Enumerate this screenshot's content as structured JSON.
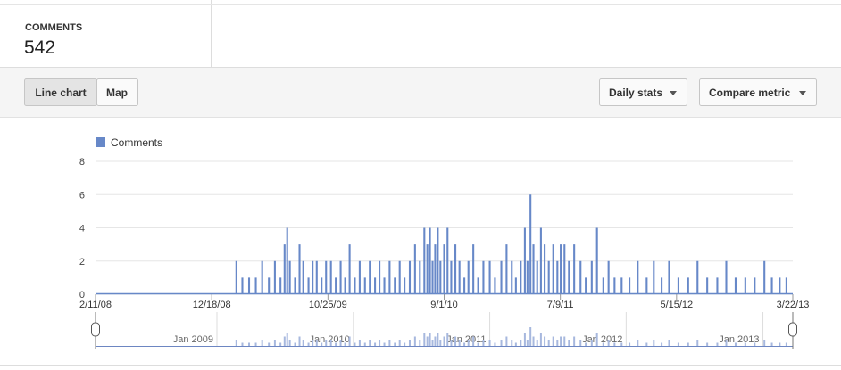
{
  "header": {
    "metric_label": "COMMENTS",
    "metric_value": "542"
  },
  "toolbar": {
    "tabs": [
      "Line chart",
      "Map"
    ],
    "menus": [
      "Daily stats",
      "Compare metric"
    ]
  },
  "chart_data": {
    "type": "bar",
    "series": [
      {
        "name": "Comments",
        "color": "#6788c8",
        "x": [
          "2/22/09",
          "3/10/09",
          "3/28/09",
          "4/15/09",
          "5/2/09",
          "5/20/09",
          "6/5/09",
          "6/20/09",
          "7/1/09",
          "7/8/09",
          "7/15/09",
          "7/29/09",
          "8/10/09",
          "8/20/09",
          "9/3/09",
          "9/14/09",
          "9/25/09",
          "10/8/09",
          "10/20/09",
          "11/2/09",
          "11/15/09",
          "11/28/09",
          "12/10/09",
          "12/22/09",
          "1/5/10",
          "1/18/10",
          "2/1/10",
          "2/14/10",
          "2/28/10",
          "3/12/10",
          "3/25/10",
          "4/8/10",
          "4/22/10",
          "5/5/10",
          "5/18/10",
          "6/1/10",
          "6/15/10",
          "6/28/10",
          "7/10/10",
          "7/18/10",
          "7/25/10",
          "8/1/10",
          "8/8/10",
          "8/15/10",
          "8/22/10",
          "9/1/10",
          "9/10/10",
          "9/20/10",
          "10/1/10",
          "10/12/10",
          "10/25/10",
          "11/5/10",
          "11/18/10",
          "12/1/10",
          "12/15/10",
          "1/1/11",
          "1/15/11",
          "2/1/11",
          "2/15/11",
          "3/1/11",
          "3/12/11",
          "3/25/11",
          "4/5/11",
          "4/12/11",
          "4/20/11",
          "4/28/11",
          "5/8/11",
          "5/18/11",
          "5/28/11",
          "6/8/11",
          "6/20/11",
          "7/1/11",
          "7/10/11",
          "7/20/11",
          "8/1/11",
          "8/15/11",
          "9/1/11",
          "9/15/11",
          "10/1/11",
          "10/15/11",
          "11/1/11",
          "11/15/11",
          "12/1/11",
          "12/20/11",
          "1/10/12",
          "2/1/12",
          "2/25/12",
          "3/15/12",
          "4/5/12",
          "4/25/12",
          "5/20/12",
          "6/15/12",
          "7/10/12",
          "8/5/12",
          "9/1/12",
          "9/25/12",
          "10/20/12",
          "11/15/12",
          "12/10/12",
          "1/5/13",
          "1/25/13",
          "2/15/13",
          "3/5/13"
        ],
        "values": [
          2,
          1,
          1,
          1,
          2,
          1,
          2,
          1,
          3,
          4,
          2,
          1,
          3,
          2,
          1,
          2,
          2,
          1,
          2,
          2,
          1,
          2,
          1,
          3,
          1,
          2,
          1,
          2,
          1,
          2,
          1,
          2,
          1,
          2,
          1,
          2,
          3,
          2,
          4,
          3,
          4,
          2,
          3,
          4,
          2,
          3,
          4,
          2,
          3,
          2,
          1,
          2,
          3,
          1,
          2,
          2,
          1,
          2,
          3,
          2,
          1,
          2,
          4,
          2,
          6,
          3,
          2,
          4,
          3,
          2,
          3,
          2,
          3,
          3,
          2,
          3,
          2,
          1,
          2,
          4,
          1,
          2,
          1,
          1,
          1,
          2,
          1,
          2,
          1,
          2,
          1,
          1,
          2,
          1,
          1,
          2,
          1,
          1,
          1,
          2,
          1,
          1,
          1
        ]
      }
    ],
    "xlim": [
      "2/11/08",
      "3/22/13"
    ],
    "xticks": [
      "2/11/08",
      "12/18/08",
      "10/25/09",
      "9/1/10",
      "7/9/11",
      "5/15/12",
      "3/22/13"
    ],
    "ylim": [
      0,
      8
    ],
    "yticks": [
      0,
      2,
      4,
      6,
      8
    ],
    "grid": true,
    "navigator_labels": [
      "Jan 2009",
      "Jan 2010",
      "Jan 2011",
      "Jan 2012",
      "Jan 2013"
    ]
  }
}
